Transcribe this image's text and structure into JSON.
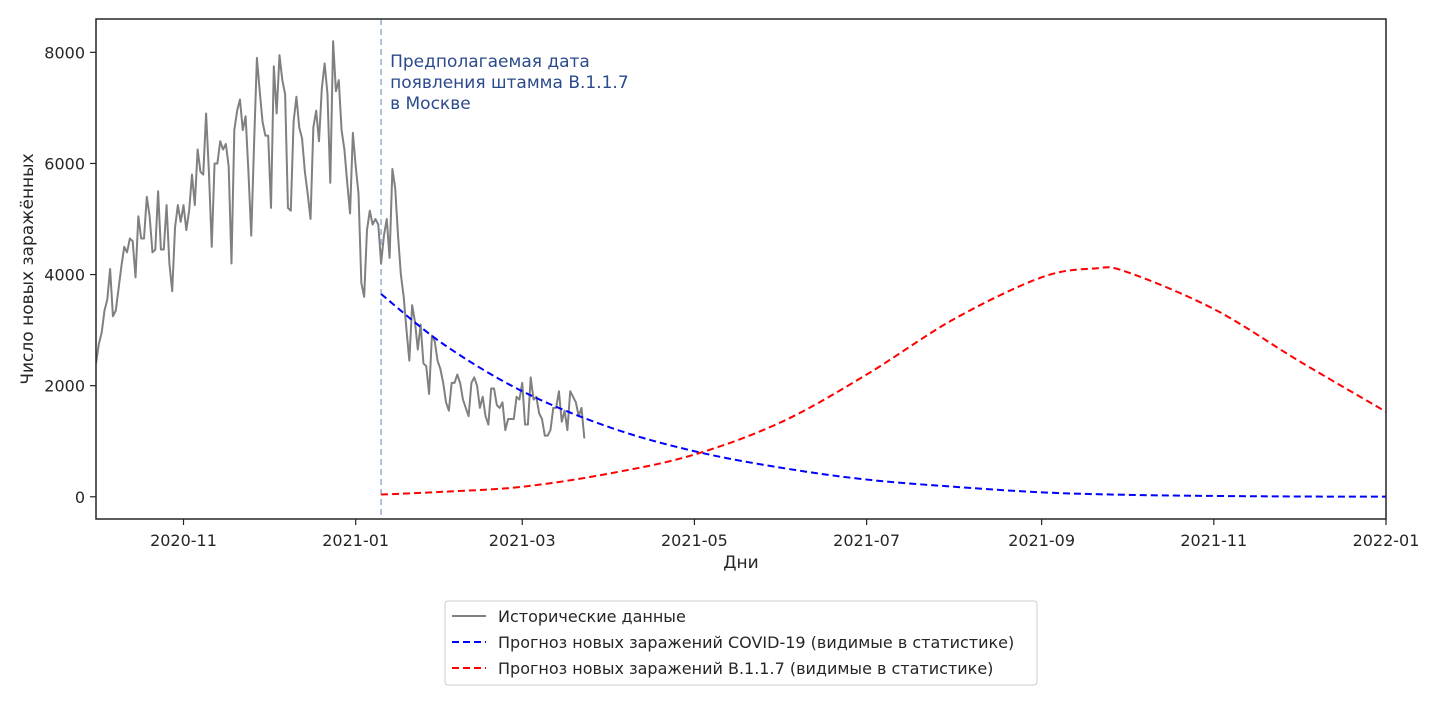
{
  "chart_data": {
    "type": "line",
    "xlabel": "Дни",
    "ylabel": "Число новых заражённых",
    "xlim": [
      "2020-10-01",
      "2022-01-01"
    ],
    "ylim": [
      -400,
      8600
    ],
    "yticks": [
      0,
      2000,
      4000,
      6000,
      8000
    ],
    "xticks": [
      "2020-11",
      "2021-01",
      "2021-03",
      "2021-05",
      "2021-07",
      "2021-09",
      "2021-11",
      "2022-01"
    ],
    "grid": false,
    "legend_position": "bottom-center, below axes",
    "annotation": {
      "x": "2021-01-10",
      "lines": [
        "Предполагаемая дата",
        "появления штамма B.1.1.7",
        "в Москве"
      ],
      "color": "#2b4a8b",
      "vline_color": "#9db0d8"
    },
    "series": [
      {
        "name": "Исторические данные",
        "color": "#808080",
        "style": "solid",
        "start_date": "2020-10-01",
        "values": [
          2400,
          2750,
          2950,
          3350,
          3550,
          4100,
          3250,
          3350,
          3750,
          4150,
          4500,
          4400,
          4650,
          4600,
          3950,
          5050,
          4650,
          4650,
          5400,
          5050,
          4400,
          4450,
          5500,
          4450,
          4450,
          5250,
          4200,
          3700,
          4850,
          5250,
          4950,
          5250,
          4800,
          5150,
          5800,
          5250,
          6250,
          5850,
          5800,
          6900,
          5850,
          4500,
          6000,
          6000,
          6400,
          6250,
          6350,
          5950,
          4200,
          6600,
          6950,
          7150,
          6600,
          6850,
          5850,
          4700,
          6350,
          7900,
          7300,
          6750,
          6500,
          6500,
          5200,
          7750,
          6900,
          7950,
          7500,
          7250,
          5200,
          5150,
          6750,
          7200,
          6650,
          6450,
          5850,
          5450,
          5000,
          6650,
          6950,
          6400,
          7350,
          7800,
          7250,
          5650,
          8200,
          7300,
          7500,
          6600,
          6250,
          5650,
          5100,
          6550,
          5950,
          5450,
          3850,
          3600,
          4800,
          5150,
          4900,
          5000,
          4900,
          4200,
          4700,
          5000,
          4300,
          5900,
          5550,
          4700,
          4000,
          3600,
          3000,
          2450,
          3450,
          3150,
          2650,
          3100,
          2400,
          2350,
          1850,
          2900,
          2800,
          2450,
          2300,
          2050,
          1700,
          1550,
          2050,
          2050,
          2200,
          2050,
          1750,
          1600,
          1450,
          2050,
          2150,
          2000,
          1600,
          1800,
          1450,
          1300,
          1950,
          1950,
          1650,
          1600,
          1700,
          1200,
          1400,
          1400,
          1400,
          1800,
          1750,
          2050,
          1300,
          1300,
          2150,
          1750,
          1800,
          1500,
          1400,
          1100,
          1100,
          1200,
          1600,
          1600,
          1900,
          1350,
          1550,
          1200,
          1900,
          1800,
          1700,
          1450,
          1600,
          1050
        ]
      },
      {
        "name": "Прогноз новых заражений COVID-19 (видимые в статистике)",
        "color": "#0000ff",
        "style": "dashed",
        "x": [
          "2021-01-10",
          "2021-02-01",
          "2021-03-01",
          "2021-04-01",
          "2021-05-01",
          "2021-06-01",
          "2021-07-01",
          "2021-08-01",
          "2021-09-01",
          "2021-10-01",
          "2021-11-01",
          "2021-12-01",
          "2022-01-01"
        ],
        "values": [
          3650,
          2750,
          1900,
          1250,
          820,
          520,
          310,
          180,
          80,
          35,
          15,
          5,
          2
        ]
      },
      {
        "name": "Прогноз новых заражений B.1.1.7 (видимые в статистике)",
        "color": "#ff0000",
        "style": "dashed",
        "x": [
          "2021-01-10",
          "2021-02-01",
          "2021-03-01",
          "2021-04-01",
          "2021-05-01",
          "2021-06-01",
          "2021-07-01",
          "2021-08-01",
          "2021-09-01",
          "2021-09-20",
          "2021-10-01",
          "2021-11-01",
          "2021-12-01",
          "2022-01-01"
        ],
        "values": [
          40,
          90,
          180,
          420,
          760,
          1350,
          2200,
          3200,
          3950,
          4110,
          4050,
          3380,
          2450,
          1530
        ]
      }
    ]
  }
}
